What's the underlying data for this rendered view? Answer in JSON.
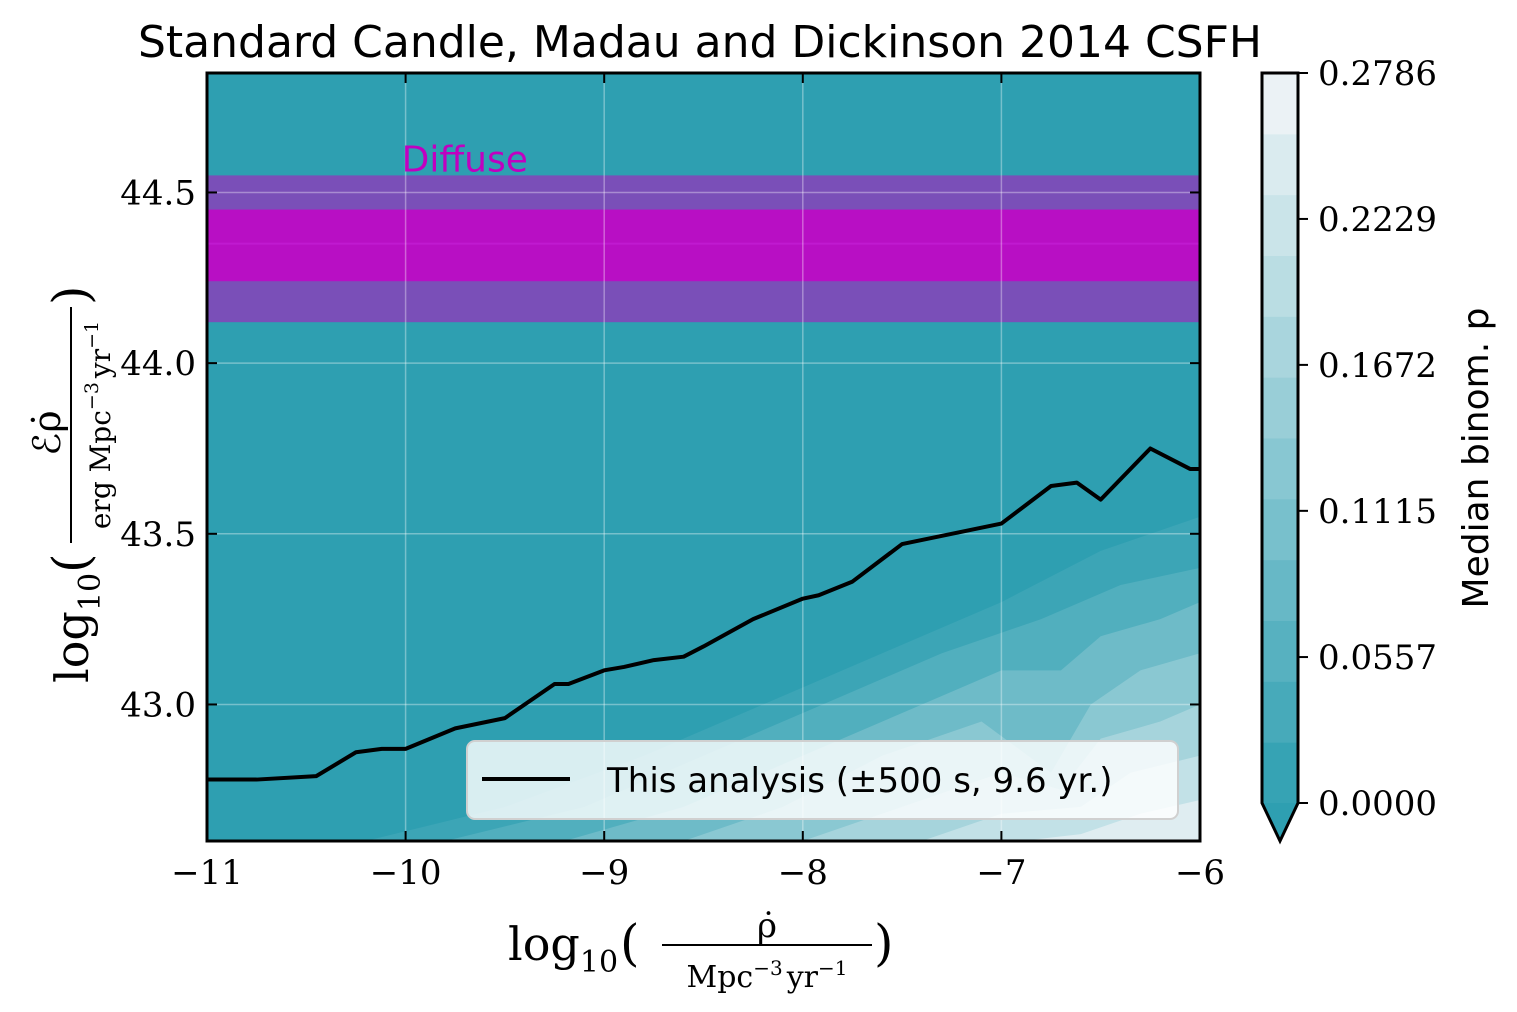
{
  "chart_data": {
    "type": "contour",
    "title": "Standard Candle, Madau and Dickinson 2014 CSFH",
    "xlabel": {
      "prefix": "log",
      "sub": "10",
      "numerator": "ρ̇",
      "denominator": "Mpc",
      "den_exp": "−3",
      "den_tail": "yr",
      "den_tail_exp": "−1"
    },
    "ylabel": {
      "prefix": "log",
      "sub": "10",
      "numerator": "ℰρ̇",
      "denominator": "erg Mpc",
      "den_exp": "−3",
      "den_tail": "yr",
      "den_tail_exp": "−1"
    },
    "xlim": [
      -11,
      -6
    ],
    "ylim": [
      42.6,
      44.85
    ],
    "xticks": [
      -11,
      -10,
      -9,
      -8,
      -7,
      -6
    ],
    "xtick_labels": [
      "−11",
      "−10",
      "−9",
      "−8",
      "−7",
      "−6"
    ],
    "yticks": [
      43.0,
      43.5,
      44.0,
      44.5
    ],
    "ytick_labels": [
      "43.0",
      "43.5",
      "44.0",
      "44.5"
    ],
    "grid": true,
    "colormap": {
      "label": "Median binom. p",
      "min": 0.0,
      "max": 0.2786,
      "levels": 12,
      "ticks": [
        0.0,
        0.0557,
        0.1115,
        0.1672,
        0.2229,
        0.2786
      ],
      "tick_labels": [
        "0.0000",
        "0.0557",
        "0.1115",
        "0.1672",
        "0.2229",
        "0.2786"
      ],
      "low_color": "#2e9fb1",
      "high_color": "#f3f6f8",
      "extend": "min"
    },
    "background_value": 0.0,
    "contour_fill": [
      {
        "level": 0.02,
        "points": [
          [
            -10.2,
            42.6
          ],
          [
            -9.5,
            42.7
          ],
          [
            -8.8,
            42.85
          ],
          [
            -8.2,
            43.0
          ],
          [
            -7.6,
            43.15
          ],
          [
            -7.0,
            43.3
          ],
          [
            -6.5,
            43.45
          ],
          [
            -6.0,
            43.55
          ],
          [
            -6.0,
            42.6
          ]
        ]
      },
      {
        "level": 0.05,
        "points": [
          [
            -9.8,
            42.6
          ],
          [
            -9.1,
            42.7
          ],
          [
            -8.5,
            42.85
          ],
          [
            -7.9,
            43.0
          ],
          [
            -7.3,
            43.15
          ],
          [
            -6.8,
            43.25
          ],
          [
            -6.4,
            43.35
          ],
          [
            -6.0,
            43.4
          ],
          [
            -6.0,
            42.6
          ]
        ]
      },
      {
        "level": 0.09,
        "points": [
          [
            -9.2,
            42.6
          ],
          [
            -8.6,
            42.7
          ],
          [
            -8.0,
            42.85
          ],
          [
            -7.4,
            43.0
          ],
          [
            -7.0,
            43.1
          ],
          [
            -6.7,
            43.1
          ],
          [
            -6.5,
            43.2
          ],
          [
            -6.2,
            43.25
          ],
          [
            -6.0,
            43.3
          ],
          [
            -6.0,
            42.6
          ]
        ]
      },
      {
        "level": 0.13,
        "points": [
          [
            -8.6,
            42.6
          ],
          [
            -8.1,
            42.7
          ],
          [
            -7.6,
            42.85
          ],
          [
            -7.1,
            42.95
          ],
          [
            -6.75,
            42.8
          ],
          [
            -6.55,
            43.0
          ],
          [
            -6.3,
            43.1
          ],
          [
            -6.0,
            43.15
          ],
          [
            -6.0,
            42.6
          ]
        ]
      },
      {
        "level": 0.17,
        "points": [
          [
            -8.0,
            42.6
          ],
          [
            -7.5,
            42.7
          ],
          [
            -7.0,
            42.8
          ],
          [
            -6.7,
            42.75
          ],
          [
            -6.5,
            42.9
          ],
          [
            -6.2,
            42.95
          ],
          [
            -6.0,
            43.0
          ],
          [
            -6.0,
            42.6
          ]
        ]
      },
      {
        "level": 0.21,
        "points": [
          [
            -7.4,
            42.6
          ],
          [
            -7.0,
            42.68
          ],
          [
            -6.6,
            42.7
          ],
          [
            -6.35,
            42.8
          ],
          [
            -6.0,
            42.85
          ],
          [
            -6.0,
            42.6
          ]
        ]
      },
      {
        "level": 0.25,
        "points": [
          [
            -6.9,
            42.6
          ],
          [
            -6.6,
            42.62
          ],
          [
            -6.3,
            42.68
          ],
          [
            -6.0,
            42.72
          ],
          [
            -6.0,
            42.6
          ]
        ]
      }
    ],
    "bands": [
      {
        "name": "Diffuse",
        "y_low": 44.12,
        "y_high": 44.55,
        "color": "#7a4fb8"
      },
      {
        "name": "Diffuse",
        "y_low": 44.24,
        "y_high": 44.45,
        "color": "#b80fc4"
      }
    ],
    "band_center": 44.35,
    "annotation": {
      "text": "Diffuse",
      "x": -10.02,
      "y": 44.6,
      "color": "#c000c0"
    },
    "series": [
      {
        "name": "This analysis (±500 s, 9.6 yr.)",
        "color": "#000000",
        "x": [
          -11.0,
          -10.75,
          -10.45,
          -10.25,
          -10.12,
          -10.0,
          -9.75,
          -9.5,
          -9.25,
          -9.18,
          -9.0,
          -8.9,
          -8.75,
          -8.6,
          -8.5,
          -8.25,
          -8.0,
          -7.92,
          -7.75,
          -7.5,
          -7.25,
          -7.0,
          -6.75,
          -6.62,
          -6.5,
          -6.25,
          -6.05,
          -6.0
        ],
        "y": [
          42.78,
          42.78,
          42.79,
          42.86,
          42.87,
          42.87,
          42.93,
          42.96,
          43.06,
          43.06,
          43.1,
          43.11,
          43.13,
          43.14,
          43.17,
          43.25,
          43.31,
          43.32,
          43.36,
          43.47,
          43.5,
          43.53,
          43.64,
          43.65,
          43.6,
          43.75,
          43.69,
          43.69
        ]
      }
    ],
    "legend": {
      "placement": "lower-right",
      "entries": [
        "This analysis (±500 s, 9.6 yr.)"
      ]
    }
  }
}
